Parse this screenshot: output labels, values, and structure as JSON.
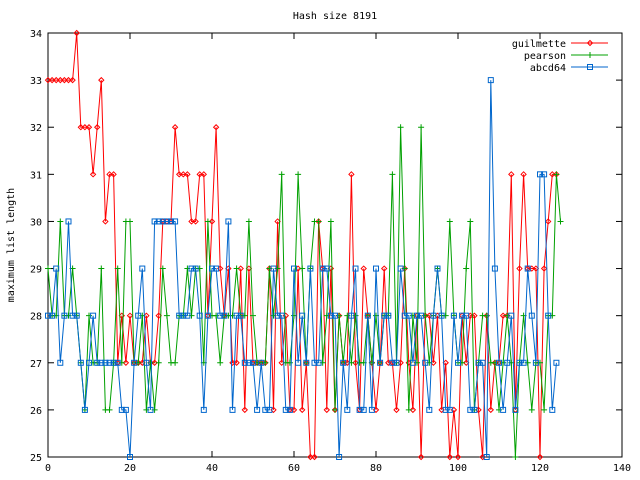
{
  "chart_data": {
    "type": "line",
    "title": "Hash size 8191",
    "xlabel": "",
    "ylabel": "maximum list length",
    "xlim": [
      0,
      140
    ],
    "ylim": [
      25,
      34
    ],
    "xticks": [
      0,
      20,
      40,
      60,
      80,
      100,
      120,
      140
    ],
    "yticks": [
      25,
      26,
      27,
      28,
      29,
      30,
      31,
      32,
      33,
      34
    ],
    "grid": false,
    "legend": "top-right",
    "series": [
      {
        "name": "guilmette",
        "color": "#ff0000",
        "marker": "diamond",
        "values": [
          33,
          33,
          33,
          33,
          33,
          33,
          33,
          34,
          32,
          32,
          32,
          31,
          32,
          33,
          30,
          31,
          31,
          27,
          28,
          27,
          28,
          27,
          27,
          27,
          28,
          27,
          27,
          28,
          30,
          30,
          30,
          32,
          31,
          31,
          31,
          30,
          30,
          31,
          31,
          28,
          30,
          32,
          29,
          28,
          29,
          27,
          27,
          29,
          26,
          29,
          27,
          27,
          27,
          27,
          29,
          26,
          30,
          27,
          28,
          26,
          26,
          29,
          26,
          27,
          25,
          25,
          30,
          29,
          26,
          29,
          26,
          28,
          27,
          27,
          31,
          27,
          26,
          29,
          28,
          27,
          26,
          27,
          29,
          27,
          27,
          26,
          27,
          29,
          27,
          26,
          28,
          25,
          28,
          28,
          27,
          28,
          26,
          27,
          25,
          26,
          25,
          28,
          27,
          28,
          28,
          26,
          25,
          28,
          26,
          27,
          27,
          28,
          28,
          31,
          26,
          29,
          31,
          29,
          29,
          29,
          25,
          29,
          30,
          31,
          31
        ]
      },
      {
        "name": "pearson",
        "color": "#00a000",
        "marker": "plus",
        "values": [
          29,
          28,
          28,
          30,
          28,
          28,
          29,
          28,
          27,
          26,
          28,
          27,
          27,
          29,
          26,
          26,
          27,
          29,
          27,
          30,
          30,
          27,
          27,
          28,
          26,
          27,
          26,
          27,
          29,
          28,
          27,
          27,
          28,
          28,
          29,
          28,
          29,
          29,
          27,
          30,
          28,
          28,
          27,
          28,
          28,
          28,
          29,
          28,
          28,
          30,
          28,
          27,
          27,
          27,
          29,
          28,
          29,
          31,
          27,
          27,
          28,
          31,
          29,
          27,
          29,
          30,
          30,
          27,
          28,
          30,
          26,
          28,
          27,
          28,
          27,
          28,
          27,
          27,
          28,
          27,
          28,
          27,
          28,
          28,
          31,
          27,
          32,
          29,
          26,
          28,
          27,
          32,
          28,
          27,
          28,
          29,
          28,
          28,
          30,
          28,
          27,
          27,
          29,
          30,
          26,
          27,
          28,
          28,
          27,
          27,
          26,
          27,
          28,
          27,
          25,
          27,
          28,
          27,
          26,
          27,
          27,
          26,
          28,
          28,
          31,
          30
        ]
      },
      {
        "name": "abcd64",
        "color": "#0066cc",
        "marker": "square",
        "values": [
          28,
          28,
          29,
          27,
          28,
          30,
          28,
          28,
          27,
          26,
          27,
          28,
          27,
          27,
          27,
          27,
          27,
          27,
          26,
          26,
          25,
          27,
          28,
          29,
          27,
          26,
          30,
          30,
          30,
          30,
          30,
          30,
          28,
          28,
          28,
          29,
          29,
          28,
          26,
          28,
          29,
          29,
          28,
          28,
          30,
          26,
          28,
          28,
          27,
          27,
          27,
          26,
          27,
          26,
          26,
          29,
          28,
          28,
          26,
          26,
          29,
          27,
          28,
          27,
          29,
          27,
          27,
          29,
          29,
          28,
          28,
          25,
          27,
          26,
          28,
          29,
          26,
          26,
          28,
          26,
          29,
          27,
          28,
          28,
          27,
          27,
          29,
          28,
          28,
          27,
          28,
          28,
          27,
          26,
          28,
          29,
          28,
          26,
          26,
          28,
          27,
          28,
          28,
          26,
          26,
          27,
          27,
          25,
          33,
          29,
          27,
          26,
          27,
          28,
          26,
          27,
          27,
          29,
          28,
          27,
          31,
          31,
          28,
          26,
          27
        ]
      }
    ]
  }
}
